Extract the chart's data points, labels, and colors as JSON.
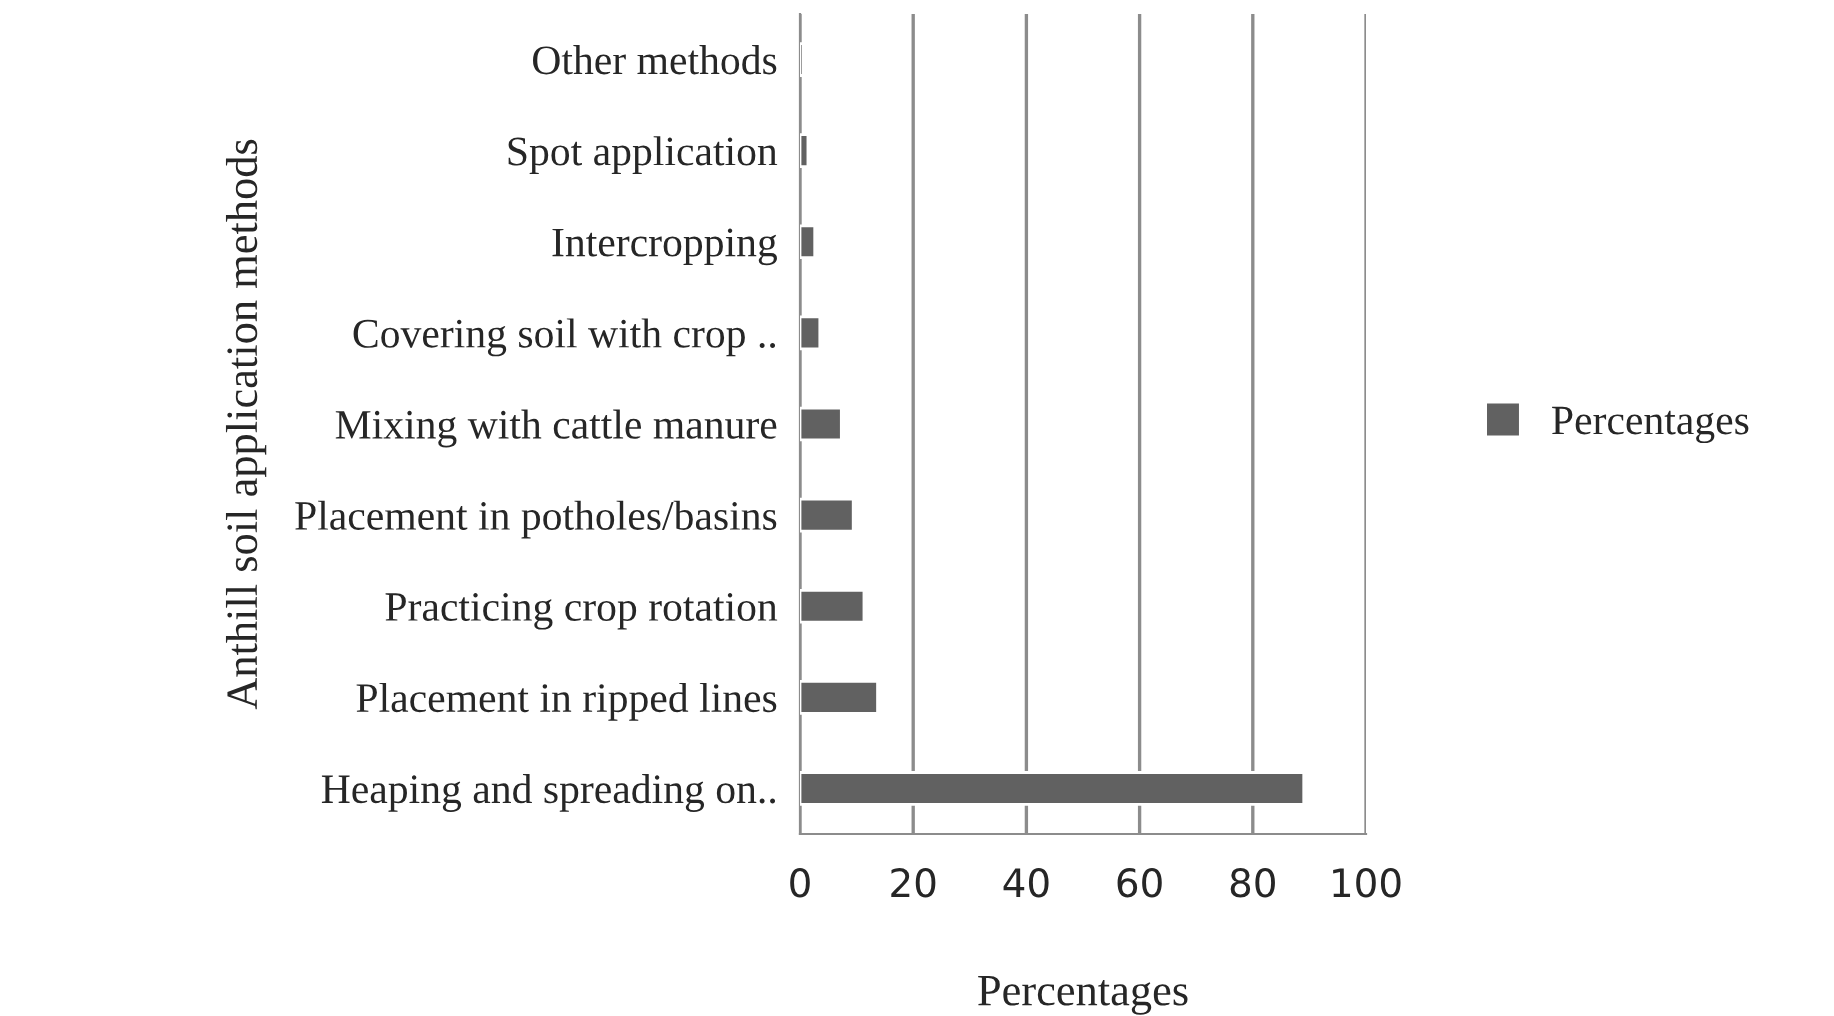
{
  "chart_data": {
    "type": "bar",
    "orientation": "horizontal",
    "xlabel": "Percentages",
    "ylabel": "Anthill soil application methods",
    "categories": [
      "Other methods",
      "Spot application",
      "Intercropping",
      "Covering soil with crop ..",
      "Mixing with cattle manure",
      "Placement in potholes/basins",
      "Practicing crop rotation",
      "Placement in ripped lines",
      "Heaping and spreading on.."
    ],
    "series": [
      {
        "name": "Percentages",
        "color": "#616161",
        "values": [
          0.6,
          1.4,
          2.6,
          3.5,
          7.3,
          9.4,
          11.3,
          13.7,
          89.0
        ]
      }
    ],
    "xlim": [
      0,
      100
    ],
    "xticks": [
      0,
      20,
      40,
      60,
      80,
      100
    ],
    "grid": "x",
    "legend": "right"
  }
}
